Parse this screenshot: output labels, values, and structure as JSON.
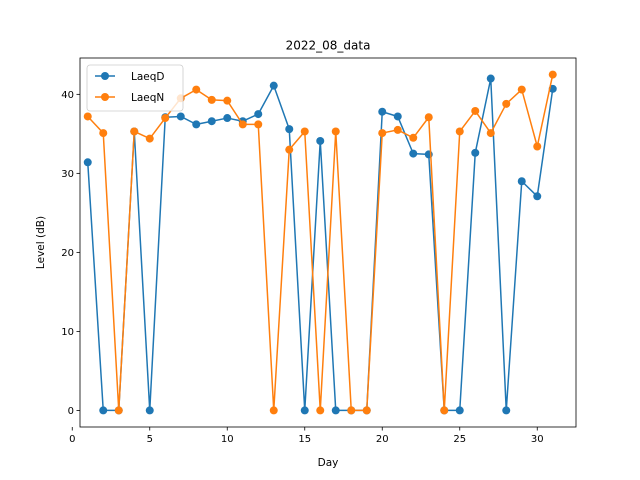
{
  "chart_data": {
    "type": "line",
    "title": "2022_08_data",
    "xlabel": "Day",
    "ylabel": "Level (dB)",
    "xlim": [
      0.5,
      32.5
    ],
    "ylim": [
      -2.1,
      44.6
    ],
    "xticks": [
      0,
      5,
      10,
      15,
      20,
      25,
      30
    ],
    "yticks": [
      0,
      10,
      20,
      30,
      40
    ],
    "grid": false,
    "legend_position": "top-left",
    "x": [
      1,
      2,
      3,
      4,
      5,
      6,
      7,
      8,
      9,
      10,
      11,
      12,
      13,
      14,
      15,
      16,
      17,
      18,
      19,
      20,
      21,
      22,
      23,
      24,
      25,
      26,
      27,
      28,
      29,
      30,
      31
    ],
    "series": [
      {
        "name": "LaeqD",
        "color": "#1f77b4",
        "values": [
          31.4,
          0,
          0,
          35.3,
          0,
          37.1,
          37.2,
          36.2,
          36.6,
          37.0,
          36.6,
          37.5,
          41.1,
          35.6,
          0,
          34.1,
          0,
          0,
          0,
          37.8,
          37.2,
          32.5,
          32.4,
          0,
          0,
          32.6,
          42.0,
          0,
          29.0,
          27.1,
          40.7
        ]
      },
      {
        "name": "LaeqN",
        "color": "#ff7f0e",
        "values": [
          37.2,
          35.1,
          0,
          35.3,
          34.4,
          37.0,
          39.5,
          40.6,
          39.3,
          39.2,
          36.2,
          36.2,
          0,
          33.0,
          35.3,
          0,
          35.3,
          0,
          0,
          35.1,
          35.5,
          34.5,
          37.1,
          0,
          35.3,
          37.9,
          35.1,
          38.8,
          40.6,
          33.4,
          42.5
        ]
      }
    ]
  }
}
